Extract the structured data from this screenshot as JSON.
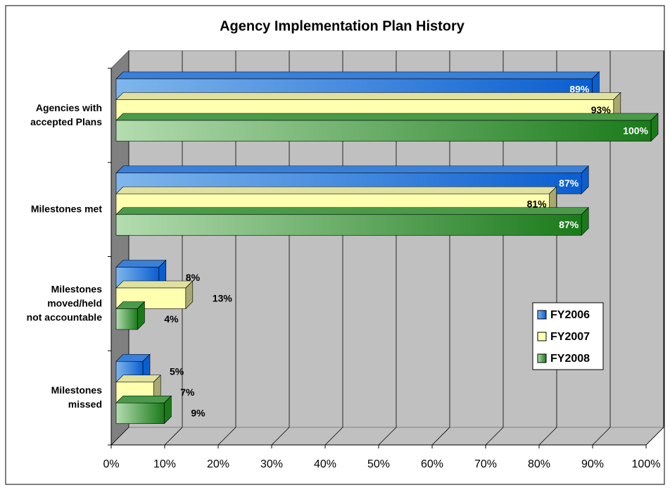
{
  "chart_data": {
    "type": "bar",
    "orientation": "horizontal",
    "three_d": true,
    "title": "Agency Implementation Plan History",
    "categories": [
      "Agencies with\naccepted Plans",
      "Milestones met",
      "Milestones\nmoved/held\nnot accountable",
      "Milestones\nmissed"
    ],
    "series": [
      {
        "name": "FY2006",
        "color": "#0a5ed0",
        "values": [
          89,
          87,
          8,
          5
        ],
        "value_labels": [
          "89%",
          "87%",
          "8%",
          "5%"
        ]
      },
      {
        "name": "FY2007",
        "color": "#ffffb0",
        "values": [
          93,
          81,
          13,
          7
        ],
        "value_labels": [
          "93%",
          "81%",
          "13%",
          "7%"
        ]
      },
      {
        "name": "FY2008",
        "color": "#1a7a1a",
        "values": [
          100,
          87,
          4,
          9
        ],
        "value_labels": [
          "100%",
          "87%",
          "4%",
          "9%"
        ]
      }
    ],
    "xlim": [
      0,
      100
    ],
    "xticks": [
      {
        "value": 0,
        "label": "0%"
      },
      {
        "value": 10,
        "label": "10%"
      },
      {
        "value": 20,
        "label": "20%"
      },
      {
        "value": 30,
        "label": "30%"
      },
      {
        "value": 40,
        "label": "40%"
      },
      {
        "value": 50,
        "label": "50%"
      },
      {
        "value": 60,
        "label": "60%"
      },
      {
        "value": 70,
        "label": "70%"
      },
      {
        "value": 80,
        "label": "80%"
      },
      {
        "value": 90,
        "label": "90%"
      },
      {
        "value": 100,
        "label": "100%"
      }
    ],
    "grid": true,
    "legend": "right"
  }
}
